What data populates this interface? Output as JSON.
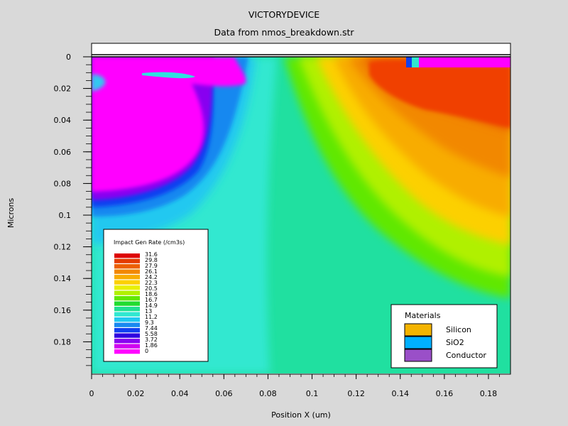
{
  "title": "VICTORYDEVICE",
  "subtitle": "Data from nmos_breakdown.str",
  "chart_data": {
    "type": "heatmap",
    "xlabel": "Position X (um)",
    "ylabel": "Microns",
    "xlim": [
      0,
      0.19
    ],
    "ylim": [
      0,
      0.2
    ],
    "y_inverted": true,
    "x_ticks": [
      "0",
      "0.02",
      "0.04",
      "0.06",
      "0.08",
      "0.1",
      "0.12",
      "0.14",
      "0.16",
      "0.18"
    ],
    "y_ticks": [
      "0",
      "0.02",
      "0.04",
      "0.06",
      "0.08",
      "0.1",
      "0.12",
      "0.14",
      "0.16",
      "0.18"
    ],
    "colorbar": {
      "title": "Impact Gen Rate (/cm3s)",
      "levels": [
        "31.6",
        "29.8",
        "27.9",
        "26.1",
        "24.2",
        "22.3",
        "20.5",
        "18.6",
        "16.7",
        "14.9",
        "13",
        "11.2",
        "9.3",
        "7.44",
        "5.58",
        "3.72",
        "1.86",
        "0"
      ],
      "colors": [
        "#dd0000",
        "#e43c00",
        "#ec6000",
        "#f28800",
        "#f8ac00",
        "#fcd000",
        "#e8f000",
        "#b0f000",
        "#60e800",
        "#22dc30",
        "#20e090",
        "#30e8d0",
        "#20c8f0",
        "#1888f0",
        "#1040f0",
        "#3000e0",
        "#8800f0",
        "#d000f0",
        "#ff00ff"
      ]
    },
    "legend": {
      "title": "Materials",
      "entries": [
        {
          "name": "Silicon",
          "color": "#f4b400"
        },
        {
          "name": "SiO2",
          "color": "#00b0ff"
        },
        {
          "name": "Conductor",
          "color": "#9a4fc8"
        }
      ],
      "position": "bottom-right"
    },
    "colorbar_position": "bottom-left"
  }
}
